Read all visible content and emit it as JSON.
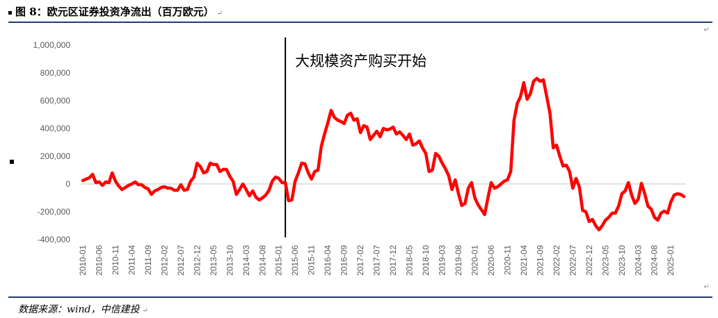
{
  "figure": {
    "title": "图 8：欧元区证券投资净流出（百万欧元）",
    "source": "数据来源：wind，中信建投",
    "mark": "↵"
  },
  "chart_data": {
    "type": "line",
    "title": "图 8：欧元区证券投资净流出（百万欧元）",
    "xlabel": "",
    "ylabel": "",
    "ylim": [
      -400000,
      1000000
    ],
    "yticks": [
      1000000,
      800000,
      600000,
      400000,
      200000,
      0,
      -200000,
      -400000
    ],
    "ytick_labels": [
      "1,000,000",
      "800,000",
      "600,000",
      "400,000",
      "200,000",
      "0",
      "-200,000",
      "-400,000"
    ],
    "xtick_labels": [
      "2010-01",
      "2010-06",
      "2010-11",
      "2011-04",
      "2011-09",
      "2012-02",
      "2012-07",
      "2012-12",
      "2013-05",
      "2013-10",
      "2014-03",
      "2014-08",
      "2015-01",
      "2015-06",
      "2015-11",
      "2016-04",
      "2016-09",
      "2017-02",
      "2017-07",
      "2017-12",
      "2018-05",
      "2018-10",
      "2019-03",
      "2019-08",
      "2020-01",
      "2020-06",
      "2020-11",
      "2021-04",
      "2021-09",
      "2022-02",
      "2022-07",
      "2022-12",
      "2023-05",
      "2023-10",
      "2024-03",
      "2024-08",
      "2025-01"
    ],
    "grid": false,
    "legend": "none",
    "annotation": {
      "text": "大规模资产购买开始",
      "x": "2015-03"
    },
    "series": [
      {
        "color": "#ff0000",
        "start": "2010-01",
        "values": [
          25000,
          35000,
          45000,
          70000,
          10000,
          15000,
          -10000,
          15000,
          10000,
          80000,
          20000,
          -15000,
          -40000,
          -25000,
          -10000,
          0,
          15000,
          -5000,
          -5000,
          -25000,
          -35000,
          -75000,
          -50000,
          -40000,
          -25000,
          -20000,
          -30000,
          -30000,
          -45000,
          -45000,
          -5000,
          -45000,
          -40000,
          20000,
          50000,
          150000,
          125000,
          80000,
          90000,
          150000,
          140000,
          140000,
          90000,
          105000,
          105000,
          55000,
          20000,
          -75000,
          -40000,
          0,
          -40000,
          -85000,
          -50000,
          -95000,
          -115000,
          -100000,
          -80000,
          -45000,
          20000,
          50000,
          40000,
          10000,
          10000,
          -120000,
          -115000,
          20000,
          80000,
          150000,
          145000,
          80000,
          35000,
          90000,
          100000,
          270000,
          360000,
          440000,
          530000,
          480000,
          460000,
          450000,
          435000,
          495000,
          510000,
          460000,
          470000,
          370000,
          420000,
          410000,
          320000,
          350000,
          380000,
          340000,
          400000,
          390000,
          395000,
          410000,
          360000,
          375000,
          350000,
          320000,
          360000,
          280000,
          290000,
          310000,
          260000,
          220000,
          90000,
          100000,
          220000,
          200000,
          150000,
          110000,
          60000,
          -40000,
          30000,
          -70000,
          -155000,
          -140000,
          -30000,
          10000,
          -100000,
          -150000,
          -185000,
          -220000,
          -100000,
          10000,
          -30000,
          -20000,
          0,
          20000,
          30000,
          90000,
          460000,
          580000,
          630000,
          730000,
          610000,
          650000,
          740000,
          760000,
          740000,
          750000,
          630000,
          510000,
          260000,
          280000,
          200000,
          130000,
          135000,
          90000,
          -30000,
          40000,
          -20000,
          -190000,
          -200000,
          -270000,
          -255000,
          -300000,
          -330000,
          -300000,
          -260000,
          -240000,
          -210000,
          -210000,
          -160000,
          -70000,
          -50000,
          10000,
          -80000,
          -140000,
          -110000,
          5000,
          -70000,
          -160000,
          -180000,
          -240000,
          -260000,
          -210000,
          -195000,
          -210000,
          -130000,
          -80000,
          -70000,
          -75000,
          -90000
        ]
      }
    ]
  }
}
